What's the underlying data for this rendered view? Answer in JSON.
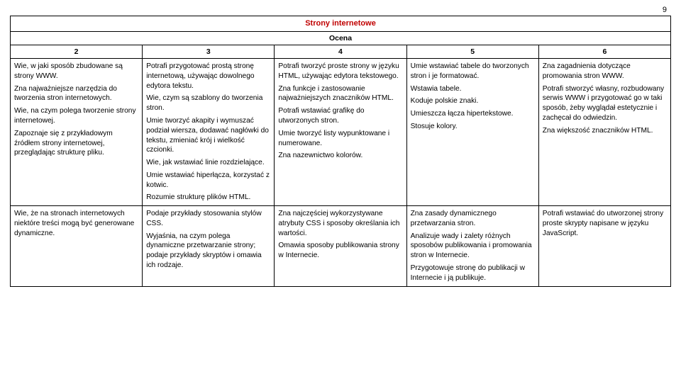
{
  "page_number": "9",
  "title": "Strony internetowe",
  "subtitle": "Ocena",
  "colors": {
    "title_color": "#c00000",
    "border_color": "#000000",
    "text_color": "#000000",
    "background": "#ffffff"
  },
  "column_headers": [
    "2",
    "3",
    "4",
    "5",
    "6"
  ],
  "column_widths_percent": [
    20,
    20,
    20,
    20,
    20
  ],
  "rows": [
    {
      "c2": [
        "Wie, w jaki sposób zbudowane są strony WWW.",
        "Zna najważniejsze narzędzia do tworzenia stron internetowych.",
        "Wie, na czym polega tworzenie strony internetowej.",
        "Zapoznaje się z przykładowym źródłem strony internetowej, przeglądając strukturę pliku."
      ],
      "c3": [
        "Potrafi przygotować prostą stronę internetową, używając dowolnego edytora tekstu.",
        "Wie, czym są szablony do tworzenia stron.",
        "Umie tworzyć akapity i wymuszać podział wiersza, dodawać nagłówki do tekstu, zmieniać krój i wielkość czcionki.",
        "Wie, jak wstawiać linie rozdzielające.",
        "Umie wstawiać hiperłącza, korzystać z kotwic.",
        "Rozumie strukturę plików HTML."
      ],
      "c4": [
        "Potrafi tworzyć proste strony w języku HTML, używając edytora tekstowego.",
        "Zna funkcje i zastosowanie najważniejszych znaczników HTML.",
        "Potrafi wstawiać grafikę do utworzonych stron.",
        "Umie tworzyć listy wypunktowane i numerowane.",
        "Zna nazewnictwo kolorów."
      ],
      "c5": [
        "Umie wstawiać tabele do tworzonych stron i je formatować.",
        "Wstawia tabele.",
        "Koduje polskie znaki.",
        "Umieszcza łącza hipertekstowe.",
        "Stosuje kolory."
      ],
      "c6": [
        "Zna zagadnienia dotyczące promowania stron WWW.",
        "Potrafi stworzyć własny, rozbudowany serwis WWW i przygotować go w taki sposób, żeby wyglądał estetycznie i zachęcał do odwiedzin.",
        "Zna większość znaczników HTML."
      ]
    },
    {
      "c2": [
        "Wie, że na stronach internetowych niektóre treści mogą być generowane dynamiczne."
      ],
      "c3": [
        "Podaje przykłady stosowania stylów CSS.",
        "Wyjaśnia, na czym polega dynamiczne przetwarzanie strony; podaje przykłady skryptów i omawia ich rodzaje."
      ],
      "c4": [
        "Zna najczęściej wykorzystywane atrybuty CSS i sposoby określania ich wartości.",
        "Omawia sposoby publikowania strony w Internecie."
      ],
      "c5": [
        "Zna zasady dynamicznego przetwarzania stron.",
        "Analizuje wady i zalety różnych sposobów publikowania i promowania stron w Internecie.",
        "Przygotowuje stronę do publikacji w Internecie i ją publikuje."
      ],
      "c6": [
        "Potrafi wstawiać do utworzonej strony proste skrypty napisane w języku JavaScript."
      ]
    }
  ]
}
